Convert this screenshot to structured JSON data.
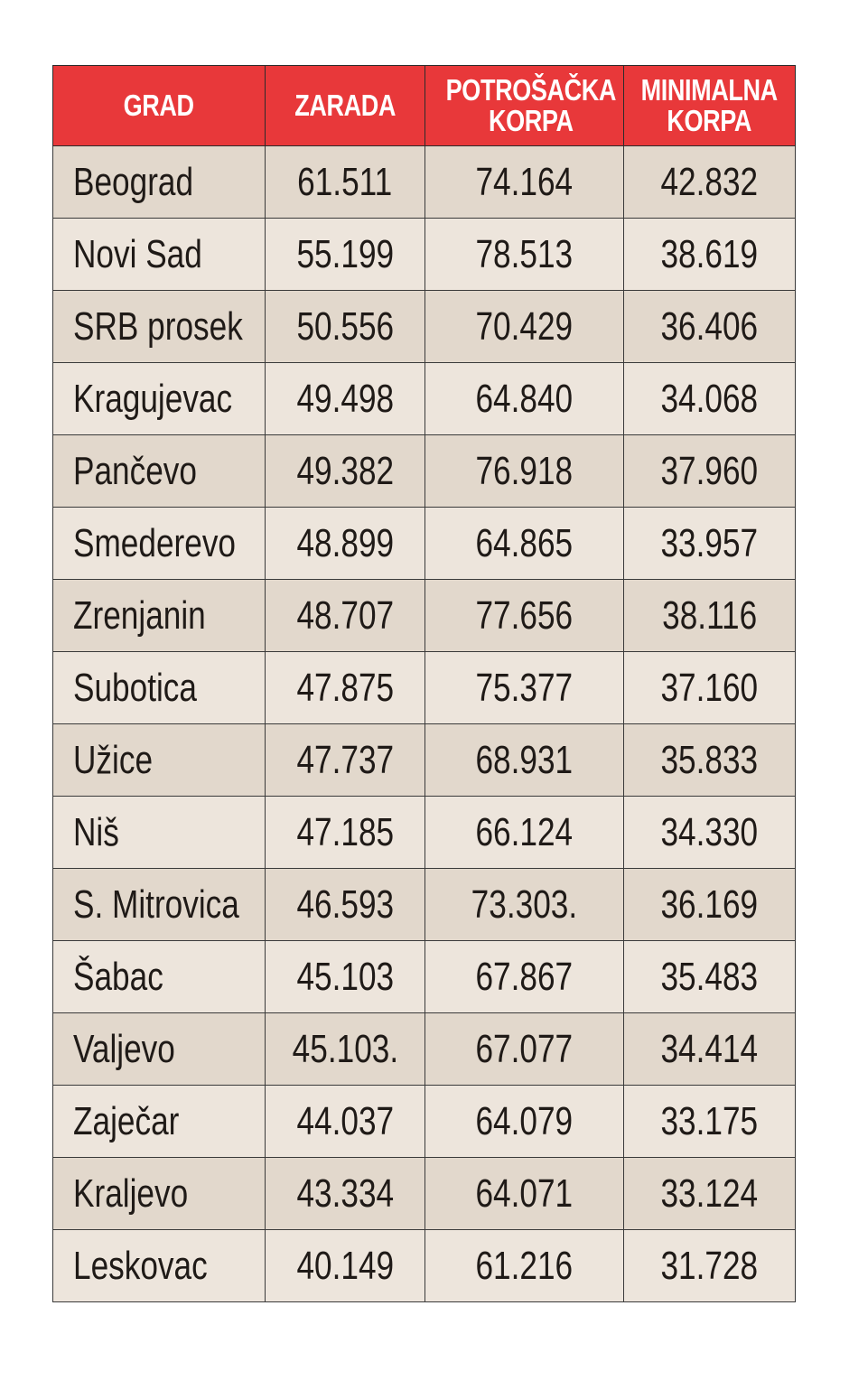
{
  "table": {
    "headers": {
      "grad": "GRAD",
      "zarada": "ZARADA",
      "potrosacka": "POTROŠAČKA\nKORPA",
      "minimalna": "MINIMALNA\nKORPA"
    },
    "rows": [
      {
        "grad": "Beograd",
        "zarada": "61.511",
        "potrosacka": "74.164",
        "minimalna": "42.832"
      },
      {
        "grad": "Novi Sad",
        "zarada": "55.199",
        "potrosacka": "78.513",
        "minimalna": "38.619"
      },
      {
        "grad": "SRB prosek",
        "zarada": "50.556",
        "potrosacka": "70.429",
        "minimalna": "36.406"
      },
      {
        "grad": "Kragujevac",
        "zarada": "49.498",
        "potrosacka": "64.840",
        "minimalna": "34.068"
      },
      {
        "grad": "Pančevo",
        "zarada": "49.382",
        "potrosacka": "76.918",
        "minimalna": "37.960"
      },
      {
        "grad": "Smederevo",
        "zarada": "48.899",
        "potrosacka": "64.865",
        "minimalna": "33.957"
      },
      {
        "grad": "Zrenjanin",
        "zarada": "48.707",
        "potrosacka": "77.656",
        "minimalna": "38.116"
      },
      {
        "grad": "Subotica",
        "zarada": "47.875",
        "potrosacka": "75.377",
        "minimalna": "37.160"
      },
      {
        "grad": "Užice",
        "zarada": "47.737",
        "potrosacka": "68.931",
        "minimalna": "35.833"
      },
      {
        "grad": "Niš",
        "zarada": "47.185",
        "potrosacka": "66.124",
        "minimalna": "34.330"
      },
      {
        "grad": "S. Mitrovica",
        "zarada": "46.593",
        "potrosacka": "73.303.",
        "minimalna": "36.169"
      },
      {
        "grad": "Šabac",
        "zarada": "45.103",
        "potrosacka": "67.867",
        "minimalna": "35.483"
      },
      {
        "grad": "Valjevo",
        "zarada": "45.103.",
        "potrosacka": "67.077",
        "minimalna": "34.414"
      },
      {
        "grad": "Zaječar",
        "zarada": "44.037",
        "potrosacka": "64.079",
        "minimalna": "33.175"
      },
      {
        "grad": "Kraljevo",
        "zarada": "43.334",
        "potrosacka": "64.071",
        "minimalna": "33.124"
      },
      {
        "grad": "Leskovac",
        "zarada": "40.149",
        "potrosacka": "61.216",
        "minimalna": "31.728"
      }
    ]
  },
  "colors": {
    "header_bg": "#e8383a",
    "header_text": "#ffffff",
    "row_odd": "#e2d8cc",
    "row_even": "#ede5dc",
    "border": "#3a3a3a"
  }
}
